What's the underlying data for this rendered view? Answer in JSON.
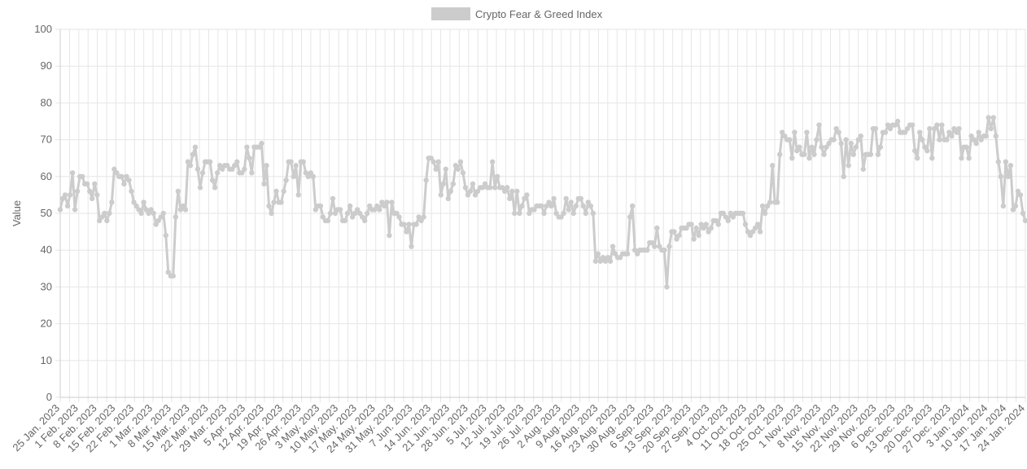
{
  "chart_data": {
    "type": "line",
    "title": "",
    "xlabel": "",
    "ylabel": "Value",
    "ylim": [
      0,
      100
    ],
    "yticks": [
      0,
      10,
      20,
      30,
      40,
      50,
      60,
      70,
      80,
      90,
      100
    ],
    "x_tick_labels": [
      "25 Jan. 2023",
      "1 Feb. 2023",
      "8 Feb. 2023",
      "15 Feb. 2023",
      "22 Feb. 2023",
      "1 Mar. 2023",
      "8 Mar. 2023",
      "15 Mar. 2023",
      "22 Mar. 2023",
      "29 Mar. 2023",
      "5 Apr. 2023",
      "12 Apr. 2023",
      "19 Apr. 2023",
      "26 Apr. 2023",
      "3 May. 2023",
      "10 May. 2023",
      "17 May. 2023",
      "24 May. 2023",
      "31 May. 2023",
      "7 Jun. 2023",
      "14 Jun. 2023",
      "21 Jun. 2023",
      "28 Jun. 2023",
      "5 Jul. 2023",
      "12 Jul. 2023",
      "19 Jul. 2023",
      "26 Jul. 2023",
      "2 Aug. 2023",
      "9 Aug. 2023",
      "16 Aug. 2023",
      "23 Aug. 2023",
      "30 Aug. 2023",
      "6 Sep. 2023",
      "13 Sep. 2023",
      "20 Sep. 2023",
      "27 Sep. 2023",
      "4 Oct. 2023",
      "11 Oct. 2023",
      "18 Oct. 2023",
      "25 Oct. 2023",
      "1 Nov. 2023",
      "8 Nov. 2023",
      "15 Nov. 2023",
      "22 Nov. 2023",
      "29 Nov. 2023",
      "6 Dec. 2023",
      "13 Dec. 2023",
      "20 Dec. 2023",
      "27 Dec. 2023",
      "3 Jan. 2024",
      "10 Jan. 2024",
      "17 Jan. 2024",
      "24 Jan. 2024"
    ],
    "grid": true,
    "legend_position": "top-center",
    "colors": {
      "series": "#cccccc",
      "grid": "#e6e6e6",
      "axis": "#cccccc",
      "text": "#666666"
    },
    "series": [
      {
        "name": "Crypto Fear & Greed Index",
        "values": [
          51,
          54,
          55,
          52,
          55,
          61,
          51,
          56,
          60,
          60,
          58,
          58,
          56,
          54,
          58,
          55,
          48,
          49,
          50,
          48,
          50,
          53,
          62,
          61,
          60,
          60,
          58,
          60,
          59,
          56,
          53,
          52,
          51,
          50,
          53,
          51,
          50,
          51,
          50,
          47,
          48,
          49,
          50,
          44,
          34,
          33,
          33,
          49,
          56,
          51,
          52,
          51,
          64,
          63,
          66,
          68,
          62,
          57,
          61,
          64,
          64,
          64,
          59,
          57,
          61,
          63,
          62,
          63,
          63,
          62,
          62,
          63,
          64,
          61,
          61,
          62,
          68,
          65,
          61,
          68,
          68,
          68,
          69,
          58,
          63,
          52,
          50,
          53,
          56,
          53,
          53,
          56,
          59,
          64,
          64,
          60,
          63,
          55,
          64,
          64,
          61,
          60,
          61,
          60,
          51,
          52,
          52,
          49,
          48,
          48,
          50,
          54,
          50,
          51,
          51,
          48,
          48,
          50,
          52,
          49,
          50,
          51,
          50,
          49,
          48,
          50,
          52,
          51,
          51,
          52,
          51,
          53,
          52,
          53,
          44,
          53,
          50,
          50,
          49,
          47,
          47,
          45,
          47,
          41,
          47,
          47,
          49,
          48,
          49,
          59,
          65,
          65,
          64,
          62,
          64,
          55,
          58,
          62,
          54,
          56,
          58,
          63,
          62,
          64,
          61,
          57,
          55,
          56,
          58,
          55,
          56,
          57,
          57,
          58,
          57,
          57,
          64,
          57,
          60,
          57,
          57,
          56,
          57,
          54,
          56,
          50,
          56,
          50,
          52,
          54,
          55,
          50,
          51,
          51,
          52,
          52,
          52,
          50,
          52,
          53,
          52,
          54,
          50,
          49,
          49,
          50,
          54,
          51,
          53,
          50,
          52,
          54,
          54,
          52,
          50,
          53,
          52,
          50,
          37,
          39,
          37,
          38,
          37,
          38,
          37,
          41,
          39,
          38,
          38,
          39,
          39,
          39,
          49,
          52,
          40,
          39,
          40,
          40,
          40,
          40,
          42,
          42,
          41,
          46,
          41,
          40,
          40,
          30,
          41,
          45,
          45,
          43,
          44,
          46,
          46,
          46,
          47,
          47,
          43,
          46,
          44,
          47,
          46,
          47,
          45,
          46,
          48,
          48,
          47,
          50,
          50,
          49,
          48,
          50,
          49,
          50,
          50,
          50,
          50,
          47,
          45,
          44,
          45,
          46,
          47,
          45,
          52,
          50,
          52,
          53,
          63,
          53,
          53,
          66,
          72,
          71,
          70,
          70,
          65,
          72,
          67,
          68,
          66,
          66,
          72,
          65,
          68,
          66,
          70,
          74,
          68,
          66,
          68,
          69,
          70,
          70,
          73,
          72,
          69,
          60,
          70,
          63,
          69,
          66,
          68,
          70,
          71,
          62,
          66,
          66,
          66,
          73,
          73,
          66,
          68,
          72,
          72,
          74,
          73,
          74,
          74,
          75,
          72,
          72,
          72,
          73,
          74,
          74,
          67,
          65,
          72,
          70,
          68,
          67,
          73,
          65,
          73,
          74,
          70,
          74,
          70,
          70,
          72,
          71,
          73,
          72,
          73,
          65,
          68,
          68,
          65,
          71,
          70,
          69,
          72,
          70,
          71,
          71,
          76,
          73,
          76,
          71,
          64,
          60,
          52,
          64,
          60,
          63,
          51,
          52,
          56,
          55,
          50,
          48
        ]
      }
    ]
  }
}
